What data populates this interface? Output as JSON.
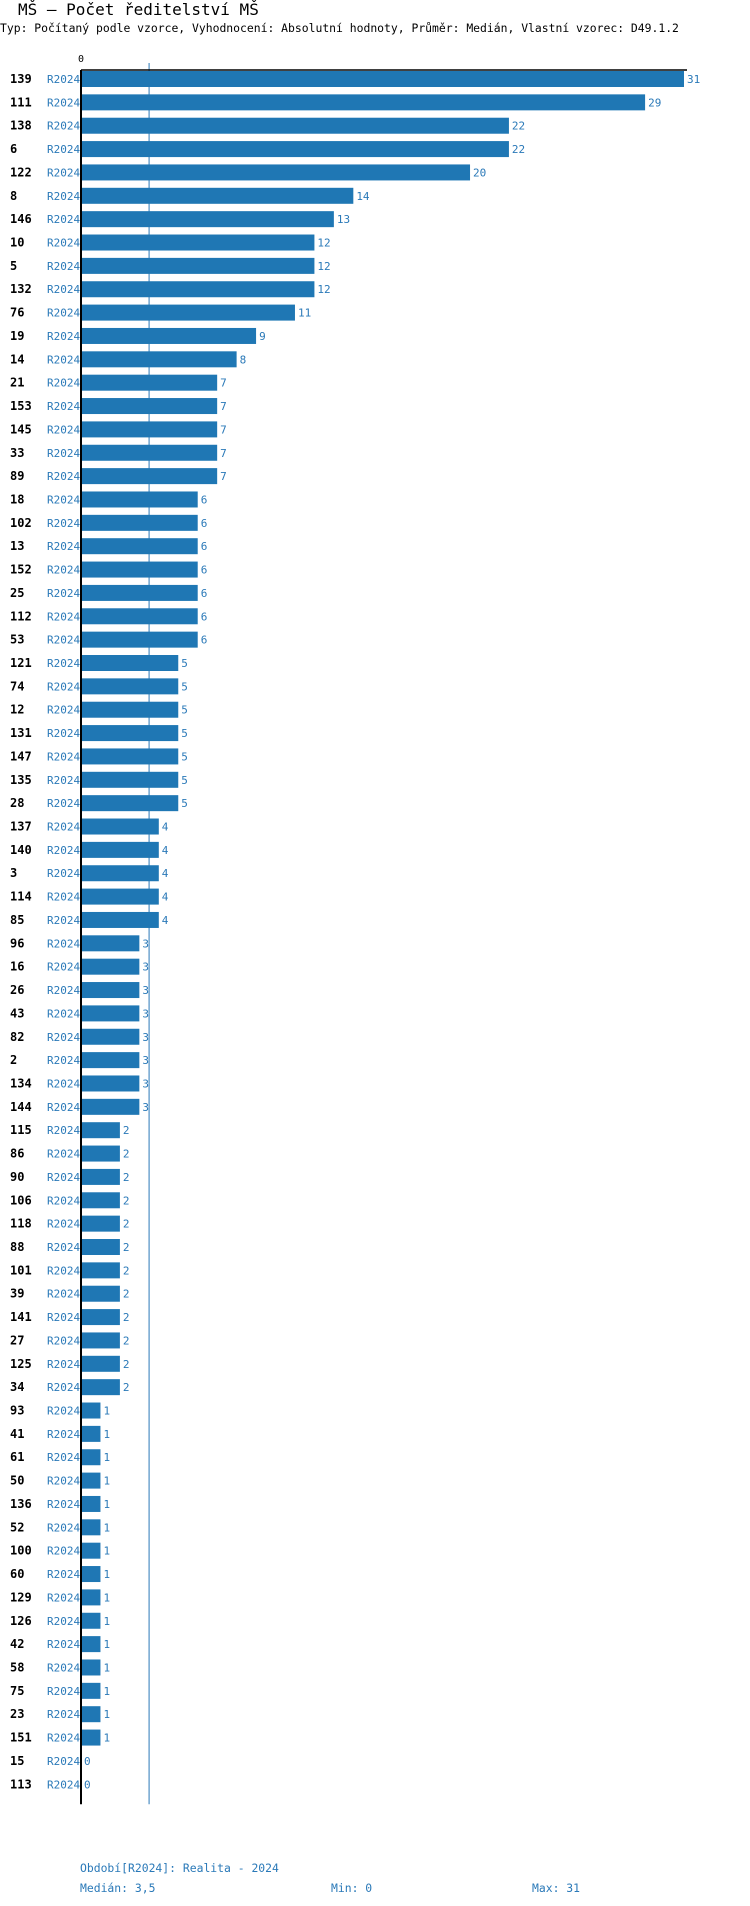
{
  "title": "MŠ – Počet ředitelství MŠ",
  "subtitle": "Typ: Počítaný podle vzorce, Vyhodnocení: Absolutní hodnoty, Průměr: Medián, Vlastní vzorec: D49.1.2",
  "chart_data": {
    "type": "bar",
    "orientation": "horizontal",
    "x_tick_labels": [
      "0"
    ],
    "xlim": [
      0,
      31
    ],
    "median_line": 3.5,
    "bar_color": "#1f77b4",
    "label_color": "#2a79b8",
    "rows": [
      {
        "id": "139",
        "period": "R2024",
        "value": 31
      },
      {
        "id": "111",
        "period": "R2024",
        "value": 29
      },
      {
        "id": "138",
        "period": "R2024",
        "value": 22
      },
      {
        "id": "6",
        "period": "R2024",
        "value": 22
      },
      {
        "id": "122",
        "period": "R2024",
        "value": 20
      },
      {
        "id": "8",
        "period": "R2024",
        "value": 14
      },
      {
        "id": "146",
        "period": "R2024",
        "value": 13
      },
      {
        "id": "10",
        "period": "R2024",
        "value": 12
      },
      {
        "id": "5",
        "period": "R2024",
        "value": 12
      },
      {
        "id": "132",
        "period": "R2024",
        "value": 12
      },
      {
        "id": "76",
        "period": "R2024",
        "value": 11
      },
      {
        "id": "19",
        "period": "R2024",
        "value": 9
      },
      {
        "id": "14",
        "period": "R2024",
        "value": 8
      },
      {
        "id": "21",
        "period": "R2024",
        "value": 7
      },
      {
        "id": "153",
        "period": "R2024",
        "value": 7
      },
      {
        "id": "145",
        "period": "R2024",
        "value": 7
      },
      {
        "id": "33",
        "period": "R2024",
        "value": 7
      },
      {
        "id": "89",
        "period": "R2024",
        "value": 7
      },
      {
        "id": "18",
        "period": "R2024",
        "value": 6
      },
      {
        "id": "102",
        "period": "R2024",
        "value": 6
      },
      {
        "id": "13",
        "period": "R2024",
        "value": 6
      },
      {
        "id": "152",
        "period": "R2024",
        "value": 6
      },
      {
        "id": "25",
        "period": "R2024",
        "value": 6
      },
      {
        "id": "112",
        "period": "R2024",
        "value": 6
      },
      {
        "id": "53",
        "period": "R2024",
        "value": 6
      },
      {
        "id": "121",
        "period": "R2024",
        "value": 5
      },
      {
        "id": "74",
        "period": "R2024",
        "value": 5
      },
      {
        "id": "12",
        "period": "R2024",
        "value": 5
      },
      {
        "id": "131",
        "period": "R2024",
        "value": 5
      },
      {
        "id": "147",
        "period": "R2024",
        "value": 5
      },
      {
        "id": "135",
        "period": "R2024",
        "value": 5
      },
      {
        "id": "28",
        "period": "R2024",
        "value": 5
      },
      {
        "id": "137",
        "period": "R2024",
        "value": 4
      },
      {
        "id": "140",
        "period": "R2024",
        "value": 4
      },
      {
        "id": "3",
        "period": "R2024",
        "value": 4
      },
      {
        "id": "114",
        "period": "R2024",
        "value": 4
      },
      {
        "id": "85",
        "period": "R2024",
        "value": 4
      },
      {
        "id": "96",
        "period": "R2024",
        "value": 3
      },
      {
        "id": "16",
        "period": "R2024",
        "value": 3
      },
      {
        "id": "26",
        "period": "R2024",
        "value": 3
      },
      {
        "id": "43",
        "period": "R2024",
        "value": 3
      },
      {
        "id": "82",
        "period": "R2024",
        "value": 3
      },
      {
        "id": "2",
        "period": "R2024",
        "value": 3
      },
      {
        "id": "134",
        "period": "R2024",
        "value": 3
      },
      {
        "id": "144",
        "period": "R2024",
        "value": 3
      },
      {
        "id": "115",
        "period": "R2024",
        "value": 2
      },
      {
        "id": "86",
        "period": "R2024",
        "value": 2
      },
      {
        "id": "90",
        "period": "R2024",
        "value": 2
      },
      {
        "id": "106",
        "period": "R2024",
        "value": 2
      },
      {
        "id": "118",
        "period": "R2024",
        "value": 2
      },
      {
        "id": "88",
        "period": "R2024",
        "value": 2
      },
      {
        "id": "101",
        "period": "R2024",
        "value": 2
      },
      {
        "id": "39",
        "period": "R2024",
        "value": 2
      },
      {
        "id": "141",
        "period": "R2024",
        "value": 2
      },
      {
        "id": "27",
        "period": "R2024",
        "value": 2
      },
      {
        "id": "125",
        "period": "R2024",
        "value": 2
      },
      {
        "id": "34",
        "period": "R2024",
        "value": 2
      },
      {
        "id": "93",
        "period": "R2024",
        "value": 1
      },
      {
        "id": "41",
        "period": "R2024",
        "value": 1
      },
      {
        "id": "61",
        "period": "R2024",
        "value": 1
      },
      {
        "id": "50",
        "period": "R2024",
        "value": 1
      },
      {
        "id": "136",
        "period": "R2024",
        "value": 1
      },
      {
        "id": "52",
        "period": "R2024",
        "value": 1
      },
      {
        "id": "100",
        "period": "R2024",
        "value": 1
      },
      {
        "id": "60",
        "period": "R2024",
        "value": 1
      },
      {
        "id": "129",
        "period": "R2024",
        "value": 1
      },
      {
        "id": "126",
        "period": "R2024",
        "value": 1
      },
      {
        "id": "42",
        "period": "R2024",
        "value": 1
      },
      {
        "id": "58",
        "period": "R2024",
        "value": 1
      },
      {
        "id": "75",
        "period": "R2024",
        "value": 1
      },
      {
        "id": "23",
        "period": "R2024",
        "value": 1
      },
      {
        "id": "151",
        "period": "R2024",
        "value": 1
      },
      {
        "id": "15",
        "period": "R2024",
        "value": 0
      },
      {
        "id": "113",
        "period": "R2024",
        "value": 0
      }
    ]
  },
  "footer": {
    "period_legend": "Období[R2024]: Realita - 2024",
    "median": "Medián: 3,5",
    "min": "Min: 0",
    "max": "Max: 31"
  }
}
